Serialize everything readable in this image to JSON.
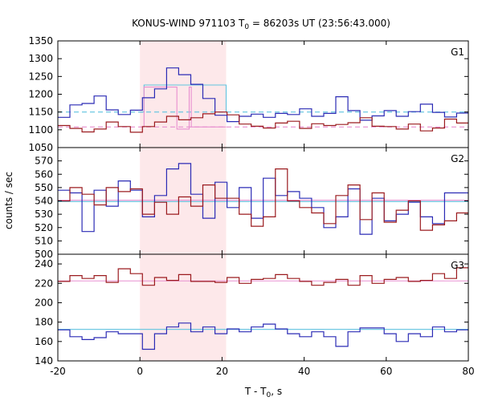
{
  "chart_data": {
    "type": "line",
    "title": {
      "main": "KONUS-WIND 971103 T",
      "sub": "0",
      "rest": " = 86203s UT (23:56:43.000)"
    },
    "xlabel": {
      "main": "T - T",
      "sub": "0",
      "rest": ", s"
    },
    "ylabel": "counts / sec",
    "xlim": [
      -20,
      80
    ],
    "x_ticks": [
      "-20",
      "0",
      "20",
      "40",
      "60",
      "80"
    ],
    "bin_width": 2.944,
    "bin_start": -20,
    "highlight": {
      "x_range": [
        0,
        21
      ],
      "color": "#fde8ea"
    },
    "colors": {
      "blue": "#2b2bb5",
      "red": "#9b1b1f",
      "cyan": "#5fc3df",
      "pink": "#e88fd0"
    },
    "panels": [
      {
        "label": "G1",
        "ylim": [
          1050,
          1350
        ],
        "y_ticks": [
          "1050",
          "1100",
          "1150",
          "1200",
          "1250",
          "1300",
          "1350"
        ],
        "series": [
          {
            "color": "blue",
            "values": [
              1135,
              1170,
              1174,
              1195,
              1156,
              1143,
              1155,
              1190,
              1215,
              1274,
              1255,
              1228,
              1188,
              1141,
              1123,
              1138,
              1144,
              1135,
              1146,
              1143,
              1159,
              1138,
              1146,
              1193,
              1154,
              1127,
              1139,
              1154,
              1138,
              1151,
              1172,
              1149,
              1136,
              1147
            ]
          },
          {
            "color": "red",
            "values": [
              1112,
              1104,
              1094,
              1102,
              1122,
              1109,
              1093,
              1109,
              1122,
              1138,
              1128,
              1134,
              1145,
              1150,
              1142,
              1116,
              1110,
              1105,
              1119,
              1124,
              1104,
              1117,
              1112,
              1115,
              1120,
              1134,
              1110,
              1109,
              1102,
              1116,
              1097,
              1105,
              1130,
              1119
            ]
          }
        ],
        "fit_lines": [
          {
            "color": "cyan",
            "style": "dashed",
            "y": 1150
          },
          {
            "color": "pink",
            "style": "dashed",
            "y": 1108
          }
        ],
        "steps": [
          {
            "color": "cyan",
            "points": [
              [
                0,
                1150
              ],
              [
                1,
                1150
              ],
              [
                1,
                1226
              ],
              [
                21,
                1226
              ],
              [
                21,
                1150
              ]
            ]
          },
          {
            "color": "pink",
            "points": [
              [
                0,
                1108
              ],
              [
                1,
                1108
              ],
              [
                1,
                1220
              ],
              [
                9,
                1220
              ],
              [
                9,
                1102
              ],
              [
                12,
                1102
              ],
              [
                12,
                1220
              ],
              [
                12.5,
                1220
              ],
              [
                12.5,
                1108
              ],
              [
                21,
                1108
              ]
            ]
          }
        ]
      },
      {
        "label": "G2",
        "ylim": [
          500,
          580
        ],
        "y_ticks": [
          "500",
          "510",
          "520",
          "530",
          "540",
          "550",
          "560",
          "570"
        ],
        "series": [
          {
            "color": "blue",
            "values": [
              548,
              546,
              517,
              548,
              536,
              555,
              548,
              528,
              544,
              564,
              568,
              545,
              527,
              554,
              535,
              550,
              527,
              557,
              544,
              547,
              542,
              535,
              520,
              528,
              549,
              515,
              542,
              525,
              530,
              539,
              528,
              523,
              546,
              546
            ]
          },
          {
            "color": "red",
            "values": [
              540,
              550,
              545,
              537,
              550,
              547,
              549,
              530,
              539,
              530,
              543,
              536,
              552,
              542,
              542,
              530,
              521,
              528,
              564,
              540,
              535,
              531,
              523,
              544,
              552,
              526,
              546,
              524,
              533,
              540,
              518,
              522,
              525,
              531
            ]
          }
        ],
        "fit_lines": [
          {
            "color": "cyan",
            "style": "solid",
            "y": 539.5
          },
          {
            "color": "pink",
            "style": "solid",
            "y": 540.5
          }
        ],
        "steps": []
      },
      {
        "label": "G3",
        "ylim": [
          140,
          250
        ],
        "y_ticks": [
          "140",
          "160",
          "180",
          "200",
          "220",
          "240"
        ],
        "series": [
          {
            "color": "blue",
            "values": [
              172,
              165,
              162,
              164,
              170,
              168,
              168,
              152,
              168,
              175,
              179,
              170,
              175,
              168,
              173,
              170,
              175,
              178,
              173,
              168,
              165,
              170,
              165,
              155,
              170,
              174,
              174,
              168,
              160,
              168,
              165,
              175,
              170,
              172
            ]
          },
          {
            "color": "red",
            "values": [
              222,
              228,
              225,
              228,
              221,
              235,
              230,
              218,
              226,
              223,
              229,
              222,
              222,
              221,
              226,
              220,
              224,
              225,
              229,
              225,
              222,
              218,
              221,
              224,
              218,
              228,
              220,
              224,
              226,
              222,
              223,
              230,
              225,
              236
            ]
          }
        ],
        "fit_lines": [
          {
            "color": "cyan",
            "style": "solid",
            "y": 172.5
          },
          {
            "color": "pink",
            "style": "solid",
            "y": 222.5
          }
        ],
        "steps": []
      }
    ]
  }
}
